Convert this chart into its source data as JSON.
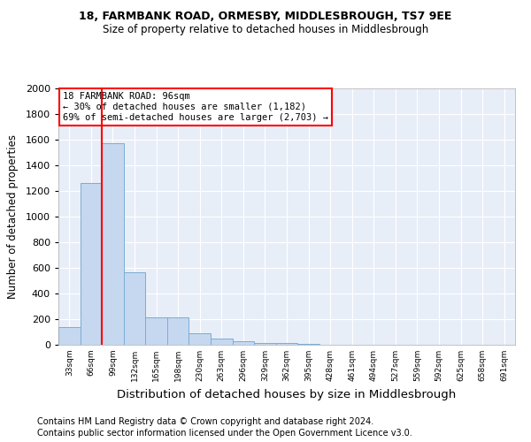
{
  "title1": "18, FARMBANK ROAD, ORMESBY, MIDDLESBROUGH, TS7 9EE",
  "title2": "Size of property relative to detached houses in Middlesbrough",
  "xlabel": "Distribution of detached houses by size in Middlesbrough",
  "ylabel": "Number of detached properties",
  "footer1": "Contains HM Land Registry data © Crown copyright and database right 2024.",
  "footer2": "Contains public sector information licensed under the Open Government Licence v3.0.",
  "annotation_line1": "18 FARMBANK ROAD: 96sqm",
  "annotation_line2": "← 30% of detached houses are smaller (1,182)",
  "annotation_line3": "69% of semi-detached houses are larger (2,703) →",
  "bar_color": "#c5d8f0",
  "bar_edge_color": "#7aadd4",
  "marker_color": "red",
  "property_bar_index": 2,
  "categories": [
    "33sqm",
    "66sqm",
    "99sqm",
    "132sqm",
    "165sqm",
    "198sqm",
    "230sqm",
    "263sqm",
    "296sqm",
    "329sqm",
    "362sqm",
    "395sqm",
    "428sqm",
    "461sqm",
    "494sqm",
    "527sqm",
    "559sqm",
    "592sqm",
    "625sqm",
    "658sqm",
    "691sqm"
  ],
  "values": [
    140,
    1265,
    1570,
    565,
    215,
    215,
    90,
    50,
    25,
    15,
    15,
    10,
    0,
    0,
    0,
    0,
    0,
    0,
    0,
    0,
    0
  ],
  "ylim": [
    0,
    2000
  ],
  "yticks": [
    0,
    200,
    400,
    600,
    800,
    1000,
    1200,
    1400,
    1600,
    1800,
    2000
  ],
  "plot_bg_color": "#e8eef8",
  "grid_color": "#ffffff",
  "fig_bg_color": "#ffffff"
}
